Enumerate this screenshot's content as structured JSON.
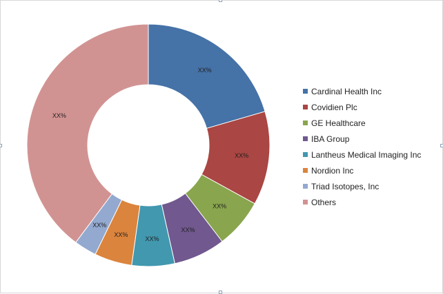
{
  "chart_data": {
    "type": "pie",
    "donut": true,
    "title": "",
    "legend_position": "right",
    "categories": [
      "Cardinal Health Inc",
      "Covidien Plc",
      "GE Healthcare",
      "IBA Group",
      "Lantheus Medical Imaging Inc",
      "Nordion Inc",
      "Triad Isotopes, Inc",
      "Others"
    ],
    "values": [
      20.5,
      12.5,
      6.6,
      6.9,
      5.7,
      5.0,
      3.0,
      39.8
    ],
    "data_labels": [
      "XX%",
      "XX%",
      "XX%",
      "XX%",
      "XX%",
      "XX%",
      "XX%",
      "XX%"
    ],
    "colors": [
      "#4572A7",
      "#AA4643",
      "#89A54E",
      "#71588F",
      "#4198AF",
      "#DB843D",
      "#93A9CF",
      "#D19392"
    ]
  }
}
